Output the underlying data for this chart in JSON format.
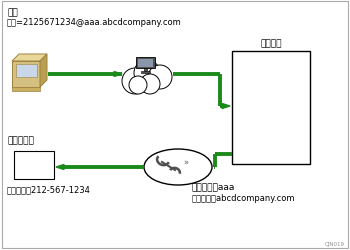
{
  "bg_color": "#ffffff",
  "border_color": "#000000",
  "green": "#1a8a1a",
  "gray_border": "#888888",
  "label_top1": "指定",
  "label_top2": "傳真=2125671234@aaa.abcdcompany.com",
  "label_dest": "傳送目的地",
  "label_fax": "傳真號碼：212-567-1234",
  "label_your_machine": "您的機器",
  "label_host": "主機名稱：aaa",
  "label_domain": "網域名稱：abcdcompany.com",
  "label_copyright": "CJN019",
  "fax_color": "#d4c080",
  "fax_edge": "#a08040",
  "cloud_color": "#ffffff",
  "machine_box_color": "#ffffff"
}
